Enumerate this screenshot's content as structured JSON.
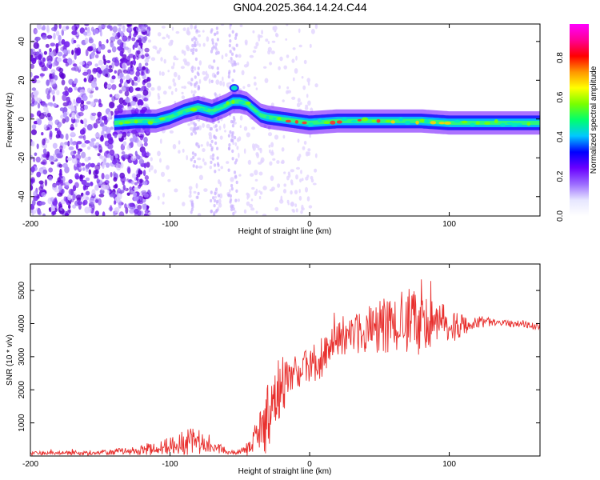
{
  "title": "GN04.2025.364.14.24.C44",
  "chart_data": [
    {
      "type": "heatmap",
      "xlabel": "Height of straight line (km)",
      "ylabel": "Frequency (Hz)",
      "xlim": [
        -200,
        165
      ],
      "ylim": [
        -50,
        49
      ],
      "xticks": [
        -200,
        -100,
        0,
        100
      ],
      "yticks": [
        -40,
        -20,
        0,
        20,
        40
      ],
      "colorbar": {
        "label": "Normalized spectral amplitude",
        "range": [
          0,
          0.97
        ],
        "ticks": [
          0.0,
          0.2,
          0.4,
          0.6,
          0.8
        ],
        "colors": [
          "#ffffff",
          "#e6e6ff",
          "#9b6bff",
          "#6a00ff",
          "#0000ff",
          "#00c8ff",
          "#00ff6e",
          "#78ff00",
          "#ffff00",
          "#ff9600",
          "#ff0000",
          "#ff0096",
          "#ff00ff"
        ]
      },
      "ridge": {
        "x": [
          -140,
          -125,
          -110,
          -100,
          -90,
          -80,
          -70,
          -60,
          -55,
          -50,
          -45,
          -40,
          -35,
          -30,
          -20,
          -10,
          0,
          20,
          40,
          60,
          80,
          100,
          120,
          140,
          165
        ],
        "y": [
          -2,
          -1,
          -1,
          1,
          4,
          6,
          4,
          7,
          9,
          9,
          8,
          5,
          2,
          1,
          0,
          -1,
          -2,
          -1,
          -1,
          -1,
          -1,
          -2,
          -2,
          -2,
          -2
        ]
      }
    },
    {
      "type": "line",
      "xlabel": "Height of straight line (km)",
      "ylabel": "SNR (10 * v/v)",
      "xlim": [
        -200,
        165
      ],
      "ylim": [
        0,
        5800
      ],
      "xticks": [
        -200,
        -100,
        0,
        100
      ],
      "yticks": [
        1000,
        2000,
        3000,
        4000,
        5000
      ],
      "color": "#e8302e",
      "series_mean": {
        "x": [
          -200,
          -180,
          -160,
          -140,
          -120,
          -105,
          -95,
          -85,
          -75,
          -65,
          -55,
          -50,
          -45,
          -40,
          -35,
          -30,
          -25,
          -20,
          -10,
          0,
          10,
          20,
          30,
          40,
          50,
          60,
          70,
          80,
          90,
          100,
          110,
          120,
          130,
          140,
          150,
          165
        ],
        "y": [
          80,
          90,
          100,
          130,
          180,
          260,
          350,
          500,
          330,
          220,
          120,
          160,
          200,
          350,
          600,
          1100,
          1700,
          2000,
          2400,
          2700,
          3000,
          3500,
          3700,
          3800,
          3900,
          4000,
          4100,
          4050,
          4000,
          3950,
          3950,
          4050,
          4050,
          4000,
          4000,
          3900
        ]
      },
      "series_noise": {
        "x": [
          -200,
          -180,
          -160,
          -140,
          -120,
          -105,
          -95,
          -85,
          -75,
          -65,
          -55,
          -50,
          -45,
          -40,
          -35,
          -30,
          -25,
          -20,
          -10,
          0,
          10,
          20,
          30,
          40,
          50,
          60,
          70,
          80,
          90,
          100,
          110,
          120,
          130,
          140,
          150,
          165
        ],
        "y": [
          60,
          60,
          70,
          90,
          150,
          250,
          300,
          500,
          250,
          150,
          80,
          100,
          200,
          500,
          800,
          900,
          800,
          800,
          700,
          600,
          600,
          500,
          600,
          700,
          800,
          900,
          1000,
          900,
          700,
          600,
          300,
          200,
          120,
          100,
          100,
          100
        ]
      }
    }
  ]
}
